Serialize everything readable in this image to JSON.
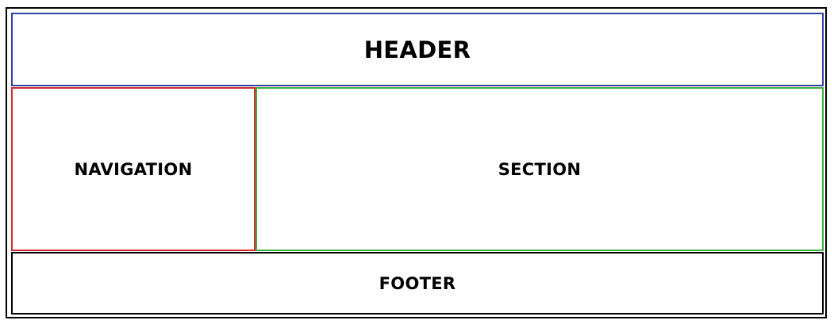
{
  "colors": {
    "header_border": "#3342a6",
    "navigation_border": "#d42b2b",
    "section_border": "#3fad3f",
    "footer_border": "#000000",
    "outer_border": "#000000"
  },
  "layout_blocks": {
    "header": {
      "label": "HEADER"
    },
    "navigation": {
      "label": "NAVIGATION"
    },
    "section": {
      "label": "SECTION"
    },
    "footer": {
      "label": "FOOTER"
    }
  }
}
